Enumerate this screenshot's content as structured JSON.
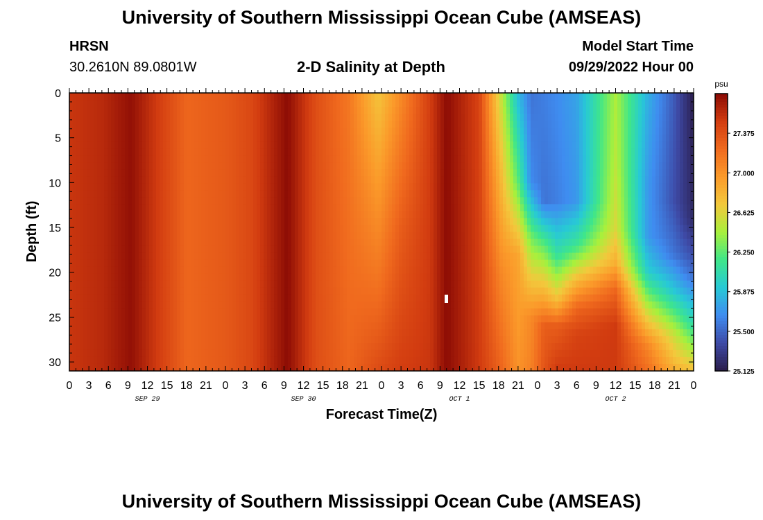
{
  "header": {
    "title": "University of Southern Mississippi Ocean Cube (AMSEAS)",
    "station": "HRSN",
    "coords": "30.2610N  89.0801W",
    "subtitle": "2-D Salinity at Depth",
    "model_start_label": "Model Start Time",
    "model_start_value": "09/29/2022 Hour 00"
  },
  "footer": {
    "title": "University of Southern Mississippi Ocean Cube (AMSEAS)"
  },
  "chart_data": {
    "type": "heatmap",
    "title": "2-D Salinity at Depth",
    "xlabel": "Forecast Time(Z)",
    "ylabel": "Depth (ft)",
    "x_tick_labels": [
      "0",
      "3",
      "6",
      "9",
      "12",
      "15",
      "18",
      "21",
      "0",
      "3",
      "6",
      "9",
      "12",
      "15",
      "18",
      "21",
      "0",
      "3",
      "6",
      "9",
      "12",
      "15",
      "18",
      "21",
      "0",
      "3",
      "6",
      "9",
      "12",
      "15",
      "18",
      "21",
      "0"
    ],
    "date_labels": [
      {
        "label": "SEP 29",
        "hour": 12
      },
      {
        "label": "SEP 30",
        "hour": 36
      },
      {
        "label": "OCT 1",
        "hour": 60
      },
      {
        "label": "OCT 2",
        "hour": 84
      }
    ],
    "xlim_hours": [
      0,
      96
    ],
    "ylim_ft": [
      0,
      31
    ],
    "y_ticks": [
      0,
      5,
      10,
      15,
      20,
      25,
      30
    ],
    "y_inverted": true,
    "colorbar": {
      "unit": "psu",
      "min": 25.125,
      "max": 27.75,
      "ticks": [
        "27.375",
        "27.000",
        "26.625",
        "26.250",
        "25.875",
        "25.500",
        "25.125"
      ],
      "colors": [
        "#2a1c4a",
        "#3e4aa6",
        "#3f8cf0",
        "#27c9d6",
        "#3fe68a",
        "#a8f03c",
        "#f3c83c",
        "#fb9a2a",
        "#f06a1e",
        "#d23c10",
        "#8a0a04"
      ]
    },
    "profile_hours": [
      0,
      5,
      9.5,
      13,
      18,
      24,
      28,
      33.5,
      38,
      43,
      47.5,
      51,
      55.5,
      58,
      63,
      66.5,
      69,
      71,
      73,
      75,
      78,
      84,
      89,
      93,
      96
    ],
    "profiles": [
      {
        "hour": 0,
        "depth_ft": [
          0,
          31
        ],
        "salinity": [
          27.52,
          27.52
        ]
      },
      {
        "hour": 5,
        "depth_ft": [
          0,
          31
        ],
        "salinity": [
          27.58,
          27.58
        ]
      },
      {
        "hour": 9.5,
        "depth_ft": [
          0,
          31
        ],
        "salinity": [
          27.72,
          27.72
        ]
      },
      {
        "hour": 13,
        "depth_ft": [
          0,
          31
        ],
        "salinity": [
          27.52,
          27.52
        ]
      },
      {
        "hour": 18,
        "depth_ft": [
          0,
          31
        ],
        "salinity": [
          27.25,
          27.25
        ]
      },
      {
        "hour": 24,
        "depth_ft": [
          0,
          31
        ],
        "salinity": [
          27.32,
          27.32
        ]
      },
      {
        "hour": 28,
        "depth_ft": [
          0,
          31
        ],
        "salinity": [
          27.42,
          27.42
        ]
      },
      {
        "hour": 33.5,
        "depth_ft": [
          0,
          31
        ],
        "salinity": [
          27.74,
          27.74
        ]
      },
      {
        "hour": 38,
        "depth_ft": [
          0,
          31
        ],
        "salinity": [
          27.38,
          27.38
        ]
      },
      {
        "hour": 43,
        "depth_ft": [
          0,
          31
        ],
        "salinity": [
          27.15,
          27.25
        ]
      },
      {
        "hour": 47.5,
        "depth_ft": [
          0,
          10,
          20,
          31
        ],
        "salinity": [
          26.72,
          26.95,
          27.15,
          27.4
        ]
      },
      {
        "hour": 51,
        "depth_ft": [
          0,
          15,
          31
        ],
        "salinity": [
          27.05,
          27.3,
          27.48
        ]
      },
      {
        "hour": 55.5,
        "depth_ft": [
          0,
          31
        ],
        "salinity": [
          27.48,
          27.52
        ]
      },
      {
        "hour": 58,
        "depth_ft": [
          0,
          31
        ],
        "salinity": [
          27.74,
          27.74
        ]
      },
      {
        "hour": 63,
        "depth_ft": [
          0,
          31
        ],
        "salinity": [
          27.45,
          27.5
        ]
      },
      {
        "hour": 66.5,
        "depth_ft": [
          0,
          20,
          31
        ],
        "salinity": [
          26.5,
          27.05,
          27.25
        ]
      },
      {
        "hour": 69,
        "depth_ft": [
          0,
          10,
          18,
          31
        ],
        "salinity": [
          25.85,
          26.25,
          26.9,
          27.0
        ]
      },
      {
        "hour": 71,
        "depth_ft": [
          0,
          10,
          16,
          25,
          31
        ],
        "salinity": [
          25.55,
          25.65,
          26.3,
          27.05,
          27.1
        ]
      },
      {
        "hour": 73,
        "depth_ft": [
          0,
          12,
          17,
          23,
          26,
          31
        ],
        "salinity": [
          25.6,
          25.55,
          26.25,
          26.9,
          27.3,
          27.35
        ]
      },
      {
        "hour": 75,
        "depth_ft": [
          0,
          12,
          18,
          23,
          26,
          31
        ],
        "salinity": [
          25.65,
          25.6,
          26.1,
          26.75,
          27.3,
          27.5
        ]
      },
      {
        "hour": 78,
        "depth_ft": [
          0,
          12,
          17,
          21,
          24,
          27,
          31
        ],
        "salinity": [
          25.75,
          25.7,
          26.15,
          26.8,
          27.25,
          27.45,
          27.5
        ]
      },
      {
        "hour": 84,
        "depth_ft": [
          0,
          8,
          15,
          19,
          22,
          26,
          31
        ],
        "salinity": [
          26.45,
          26.5,
          26.6,
          26.85,
          27.25,
          27.5,
          27.5
        ]
      },
      {
        "hour": 89,
        "depth_ft": [
          0,
          10,
          16,
          20,
          24,
          28,
          31
        ],
        "salinity": [
          25.8,
          25.7,
          25.7,
          25.95,
          26.5,
          27.05,
          27.2
        ]
      },
      {
        "hour": 93,
        "depth_ft": [
          0,
          12,
          18,
          22,
          27,
          31
        ],
        "salinity": [
          25.45,
          25.4,
          25.55,
          25.9,
          26.55,
          26.85
        ]
      },
      {
        "hour": 96,
        "depth_ft": [
          0,
          14,
          20,
          26,
          31
        ],
        "salinity": [
          25.13,
          25.2,
          25.5,
          26.1,
          26.75
        ]
      }
    ]
  }
}
